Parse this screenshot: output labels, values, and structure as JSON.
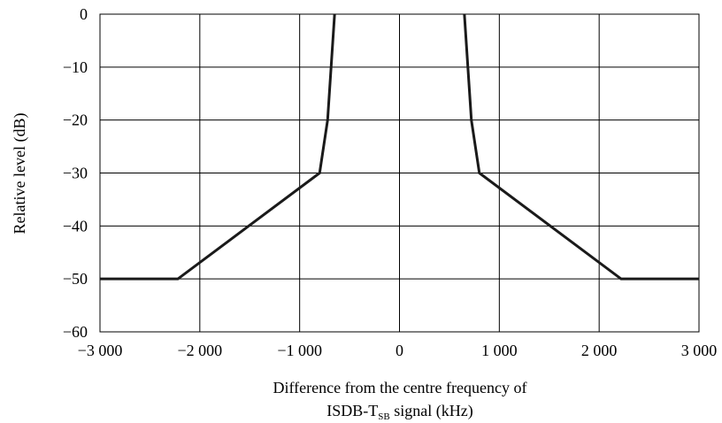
{
  "chart_data": {
    "type": "line",
    "title": "",
    "xlabel": "Difference from the centre frequency of",
    "xlabel_line2": "ISDB-T",
    "xlabel_sub": "SB",
    "xlabel_line2_suffix": " signal (kHz)",
    "ylabel": "Relative level (dB)",
    "xlim": [
      -3000,
      3000
    ],
    "ylim": [
      -60,
      0
    ],
    "xticks": [
      -3000,
      -2000,
      -1000,
      0,
      1000,
      2000,
      3000
    ],
    "xtick_labels": [
      "−3 000",
      "−2 000",
      "−1 000",
      "0",
      "1 000",
      "2 000",
      "3 000"
    ],
    "yticks": [
      0,
      -10,
      -20,
      -30,
      -40,
      -50,
      -60
    ],
    "ytick_labels": [
      "0",
      "−10",
      "−20",
      "−30",
      "−40",
      "−50",
      "−60"
    ],
    "grid": true,
    "series": [
      {
        "x": [
          -3000,
          -2220,
          -800,
          -720,
          -650
        ],
        "y": [
          -50,
          -50,
          -30,
          -20,
          0
        ]
      },
      {
        "x": [
          650,
          720,
          800,
          2220,
          3000
        ],
        "y": [
          0,
          -20,
          -30,
          -50,
          -50
        ]
      }
    ]
  }
}
